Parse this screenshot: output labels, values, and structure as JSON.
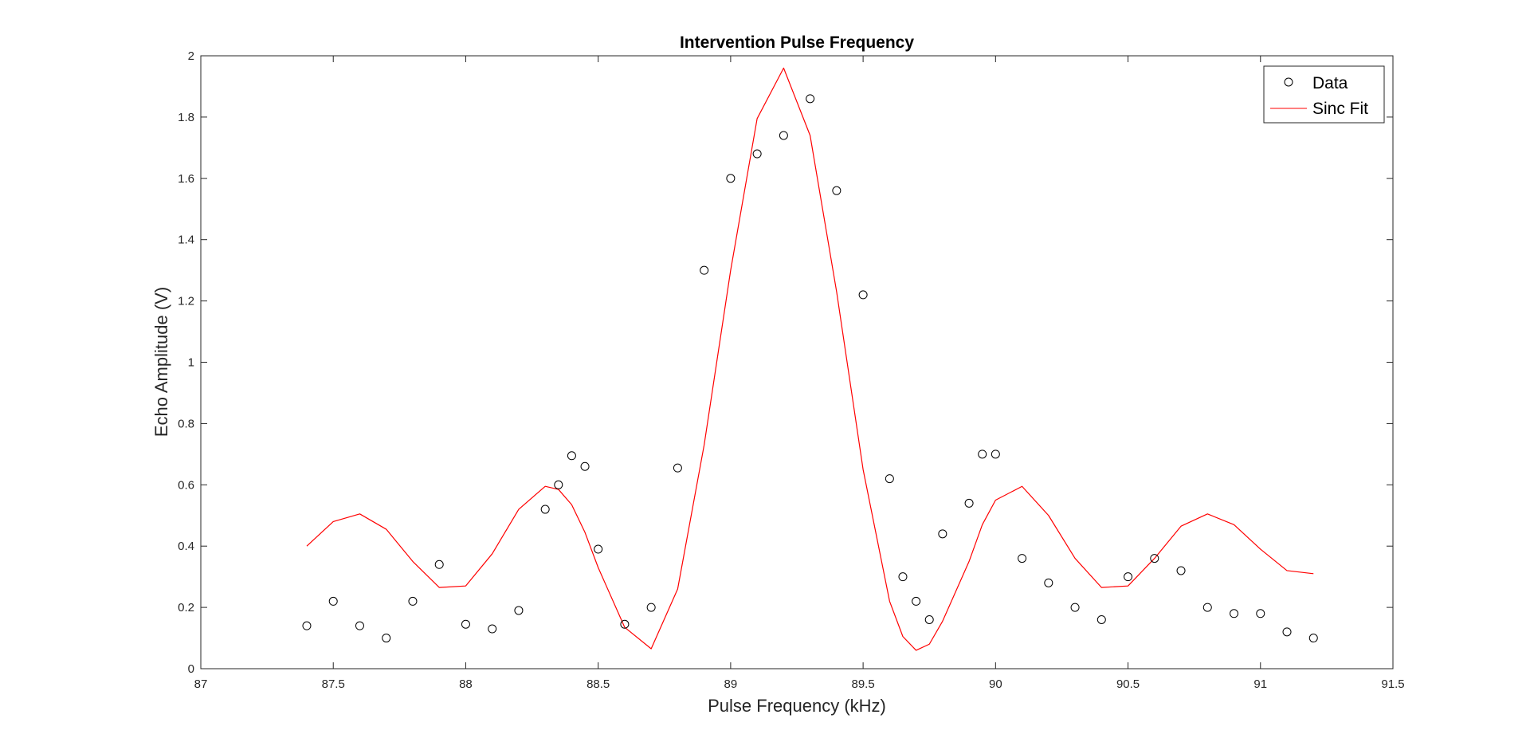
{
  "chart_data": {
    "type": "scatter",
    "title": "Intervention Pulse Frequency",
    "xlabel": "Pulse Frequency (kHz)",
    "ylabel": "Echo Amplitude (V)",
    "xlim": [
      87,
      91.5
    ],
    "ylim": [
      0,
      2
    ],
    "x_ticks": [
      87,
      87.5,
      88,
      88.5,
      89,
      89.5,
      90,
      90.5,
      91,
      91.5
    ],
    "x_tick_labels": [
      "87",
      "87.5",
      "88",
      "88.5",
      "89",
      "89.5",
      "90",
      "90.5",
      "91",
      "91.5"
    ],
    "y_ticks": [
      0,
      0.2,
      0.4,
      0.6,
      0.8,
      1,
      1.2,
      1.4,
      1.6,
      1.8,
      2
    ],
    "y_tick_labels": [
      "0",
      "0.2",
      "0.4",
      "0.6",
      "0.8",
      "1",
      "1.2",
      "1.4",
      "1.6",
      "1.8",
      "2"
    ],
    "grid": false,
    "legend_position": "top-right",
    "series": [
      {
        "name": "Data",
        "kind": "scatter",
        "marker": "open-circle",
        "color": "#000000",
        "x": [
          87.4,
          87.5,
          87.6,
          87.7,
          87.8,
          87.9,
          88.0,
          88.1,
          88.2,
          88.3,
          88.35,
          88.4,
          88.45,
          88.5,
          88.6,
          88.7,
          88.8,
          88.9,
          89.0,
          89.1,
          89.2,
          89.3,
          89.4,
          89.5,
          89.6,
          89.65,
          89.7,
          89.75,
          89.8,
          89.9,
          89.95,
          90.0,
          90.1,
          90.2,
          90.3,
          90.4,
          90.5,
          90.6,
          90.7,
          90.8,
          90.9,
          91.0,
          91.1,
          91.2
        ],
        "y": [
          0.14,
          0.22,
          0.14,
          0.1,
          0.22,
          0.34,
          0.145,
          0.13,
          0.19,
          0.52,
          0.6,
          0.695,
          0.66,
          0.39,
          0.145,
          0.2,
          0.655,
          1.3,
          1.6,
          1.68,
          1.74,
          1.86,
          1.56,
          1.22,
          0.62,
          0.3,
          0.22,
          0.16,
          0.44,
          0.54,
          0.7,
          0.7,
          0.36,
          0.28,
          0.2,
          0.16,
          0.3,
          0.36,
          0.32,
          0.2,
          0.18,
          0.18,
          0.12,
          0.1
        ]
      },
      {
        "name": "Sinc Fit",
        "kind": "line",
        "color": "#ff0000",
        "x": [
          87.4,
          87.5,
          87.6,
          87.7,
          87.8,
          87.9,
          88.0,
          88.1,
          88.2,
          88.3,
          88.35,
          88.4,
          88.45,
          88.5,
          88.6,
          88.7,
          88.8,
          88.9,
          89.0,
          89.1,
          89.2,
          89.3,
          89.4,
          89.5,
          89.6,
          89.65,
          89.7,
          89.75,
          89.8,
          89.9,
          89.95,
          90.0,
          90.1,
          90.2,
          90.3,
          90.4,
          90.5,
          90.6,
          90.7,
          90.8,
          90.9,
          91.0,
          91.1,
          91.2
        ],
        "y": [
          0.4,
          0.48,
          0.505,
          0.455,
          0.35,
          0.265,
          0.27,
          0.375,
          0.52,
          0.595,
          0.585,
          0.535,
          0.445,
          0.33,
          0.135,
          0.065,
          0.26,
          0.73,
          1.3,
          1.795,
          1.96,
          1.74,
          1.23,
          0.65,
          0.22,
          0.105,
          0.06,
          0.08,
          0.155,
          0.35,
          0.47,
          0.55,
          0.595,
          0.5,
          0.36,
          0.265,
          0.27,
          0.36,
          0.465,
          0.505,
          0.47,
          0.39,
          0.32,
          0.31
        ]
      }
    ]
  }
}
